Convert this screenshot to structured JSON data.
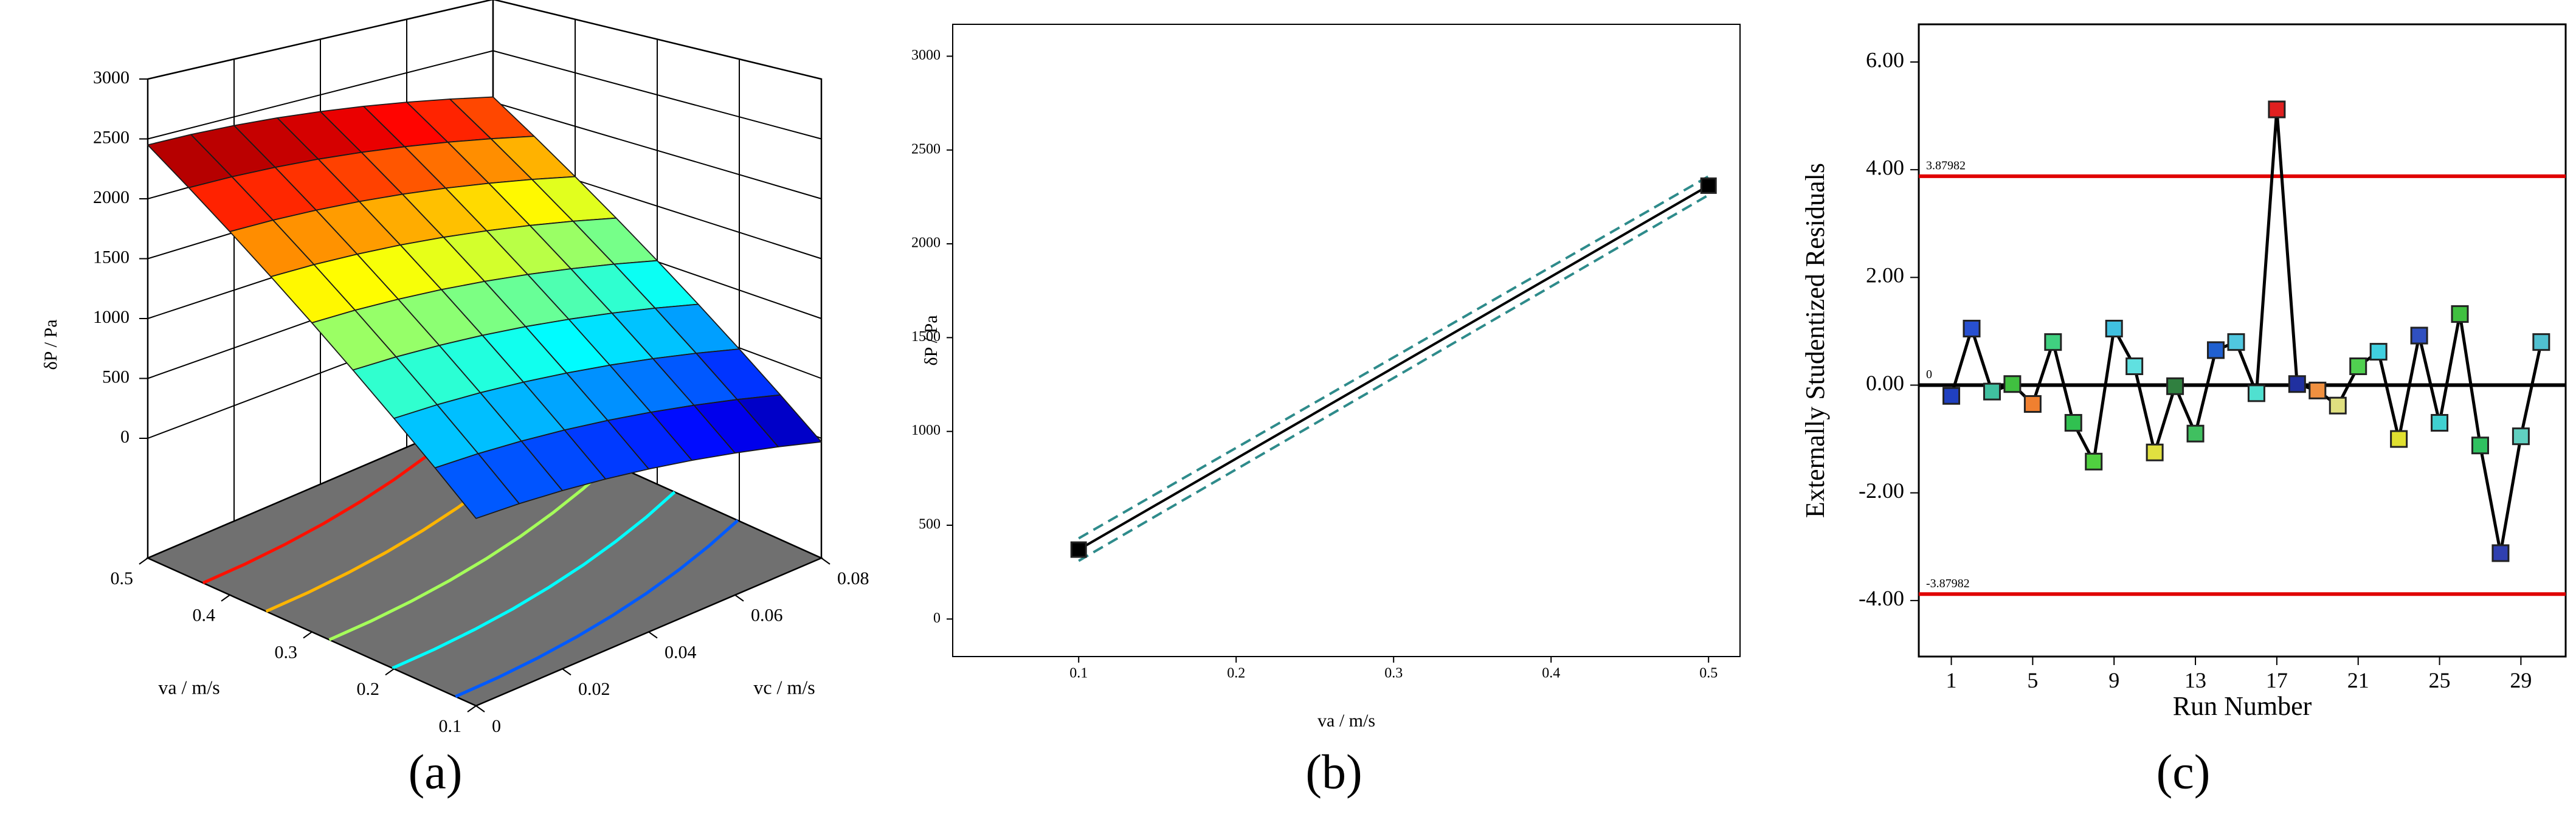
{
  "chart_data": [
    {
      "type": "surface",
      "panel_label": "(a)",
      "x_label": "vc  / m/s",
      "y_label": "va  / m/s",
      "z_label": "δP / Pa",
      "x": [
        0,
        0.01,
        0.02,
        0.03,
        0.04,
        0.05,
        0.06,
        0.07,
        0.08
      ],
      "y": [
        0.1,
        0.15,
        0.2,
        0.25,
        0.3,
        0.35,
        0.4,
        0.45,
        0.5
      ],
      "z": [
        [
          370,
          364,
          345,
          314,
          270,
          214,
          145,
          64,
          -30
        ],
        [
          630,
          624,
          605,
          574,
          530,
          474,
          405,
          324,
          230
        ],
        [
          890,
          884,
          865,
          834,
          790,
          734,
          665,
          584,
          490
        ],
        [
          1150,
          1144,
          1125,
          1094,
          1050,
          994,
          925,
          844,
          750
        ],
        [
          1410,
          1404,
          1385,
          1354,
          1310,
          1254,
          1185,
          1104,
          1010
        ],
        [
          1670,
          1664,
          1645,
          1614,
          1570,
          1514,
          1445,
          1364,
          1270
        ],
        [
          1930,
          1924,
          1905,
          1874,
          1830,
          1774,
          1705,
          1624,
          1530
        ],
        [
          2190,
          2184,
          2165,
          2134,
          2090,
          2034,
          1965,
          1884,
          1790
        ],
        [
          2450,
          2444,
          2425,
          2394,
          2350,
          2294,
          2225,
          2144,
          2050
        ]
      ],
      "xlim": [
        0,
        0.08
      ],
      "ylim": [
        0.1,
        0.5
      ],
      "zlim": [
        -1000,
        3000
      ],
      "xticks": [
        0,
        0.02,
        0.04,
        0.06,
        0.08
      ],
      "yticks": [
        0.1,
        0.2,
        0.3,
        0.4,
        0.5
      ],
      "zticks": [
        0,
        500,
        1000,
        1500,
        2000,
        2500,
        3000
      ],
      "contour_levels": [
        500,
        900,
        1300,
        1700,
        2100
      ],
      "colormap": "jet",
      "floor_color": "#707070"
    },
    {
      "type": "line",
      "panel_label": "(b)",
      "x_label": "va  / m/s",
      "y_label": "δP / Pa",
      "x": [
        0.1,
        0.5
      ],
      "series": [
        {
          "color": "#000000",
          "style": "solid",
          "marker": "square",
          "values": [
            370,
            2310
          ]
        },
        {
          "color": "#2e8b8b",
          "style": "dashed",
          "values": [
            310,
            2260
          ]
        },
        {
          "color": "#2e8b8b",
          "style": "dashed",
          "values": [
            430,
            2360
          ]
        }
      ],
      "xlim": [
        0.02,
        0.52
      ],
      "ylim": [
        -200,
        3170
      ],
      "xticks": [
        0.1,
        0.2,
        0.3,
        0.4,
        0.5
      ],
      "yticks": [
        0,
        500,
        1000,
        1500,
        2000,
        2500,
        3000
      ]
    },
    {
      "type": "line",
      "panel_label": "(c)",
      "x_label": "Run Number",
      "y_label": "Externally Studentized Residuals",
      "x": [
        1,
        2,
        3,
        4,
        5,
        6,
        7,
        8,
        9,
        10,
        11,
        12,
        13,
        14,
        15,
        16,
        17,
        18,
        19,
        20,
        21,
        22,
        23,
        24,
        25,
        26,
        27,
        28,
        29,
        30
      ],
      "values": [
        -0.2,
        1.05,
        -0.12,
        0.02,
        -0.35,
        0.8,
        -0.7,
        -1.42,
        1.05,
        0.35,
        -1.25,
        -0.02,
        -0.9,
        0.65,
        0.8,
        -0.15,
        5.12,
        0.02,
        -0.1,
        -0.38,
        0.35,
        0.62,
        -1.0,
        0.92,
        -0.7,
        1.32,
        -1.12,
        -3.12,
        -0.95,
        0.8
      ],
      "point_colors": [
        "#2040c0",
        "#2850d0",
        "#40c0a0",
        "#40c040",
        "#f08030",
        "#40d080",
        "#30c050",
        "#50d040",
        "#40c0e0",
        "#60e0e0",
        "#e0e040",
        "#308040",
        "#40c060",
        "#2060d0",
        "#50c8e0",
        "#50e0d0",
        "#e02020",
        "#2030a0",
        "#f09040",
        "#e0e080",
        "#50d050",
        "#40d0e0",
        "#e0e030",
        "#3050c0",
        "#40d0d0",
        "#40c040",
        "#30c060",
        "#3040b0",
        "#60d0c0",
        "#50c0d0"
      ],
      "line_color": "#000000",
      "hlines": [
        {
          "value": 3.87982,
          "color": "#e00000"
        },
        {
          "value": 0,
          "color": "#000000"
        },
        {
          "value": -3.87982,
          "color": "#e00000"
        }
      ],
      "xlim": [
        -0.6,
        31.2
      ],
      "ylim": [
        -5.04,
        6.7
      ],
      "xticks": [
        1,
        5,
        9,
        13,
        17,
        21,
        25,
        29
      ],
      "yticks": [
        {
          "value": -4,
          "label": "-4.00"
        },
        {
          "value": -2,
          "label": "-2.00"
        },
        {
          "value": 0,
          "label": "0.00"
        },
        {
          "value": 2,
          "label": "2.00"
        },
        {
          "value": 4,
          "label": "4.00"
        },
        {
          "value": 6,
          "label": "6.00"
        }
      ]
    }
  ]
}
